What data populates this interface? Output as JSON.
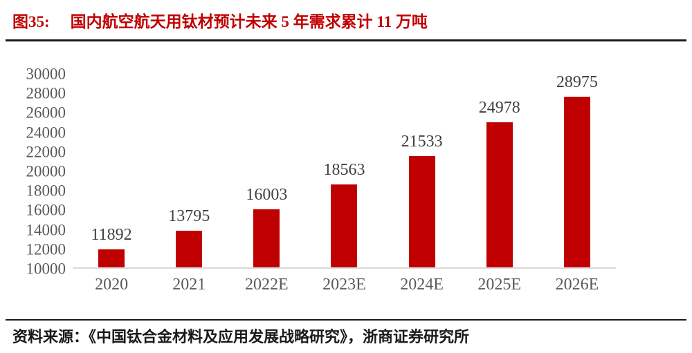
{
  "figure": {
    "label": "图35:",
    "title": "国内航空航天用钛材预计未来 5 年需求累计 11 万吨"
  },
  "source": {
    "text": "资料来源：《中国钛合金材料及应用发展战略研究》，浙商证券研究所"
  },
  "colors": {
    "bar": "#c00000",
    "title": "#c00000",
    "tick_text": "#595959",
    "value_text": "#404040",
    "baseline": "#d9d9d9",
    "rule": "#1a1a1a"
  },
  "chart_data": {
    "type": "bar",
    "title": "国内航空航天用钛材预计未来 5 年需求累计 11 万吨",
    "categories": [
      "2020",
      "2021",
      "2022E",
      "2023E",
      "2024E",
      "2025E",
      "2026E"
    ],
    "values": [
      11892,
      13795,
      16003,
      18563,
      21533,
      24978,
      28975
    ],
    "xlabel": "",
    "ylabel": "",
    "ylim": [
      10000,
      30000
    ],
    "yticks": [
      10000,
      12000,
      14000,
      16000,
      18000,
      20000,
      22000,
      24000,
      26000,
      28000,
      30000
    ],
    "grid": false,
    "legend": null,
    "data_labels": true,
    "bar_color": "#c00000"
  }
}
